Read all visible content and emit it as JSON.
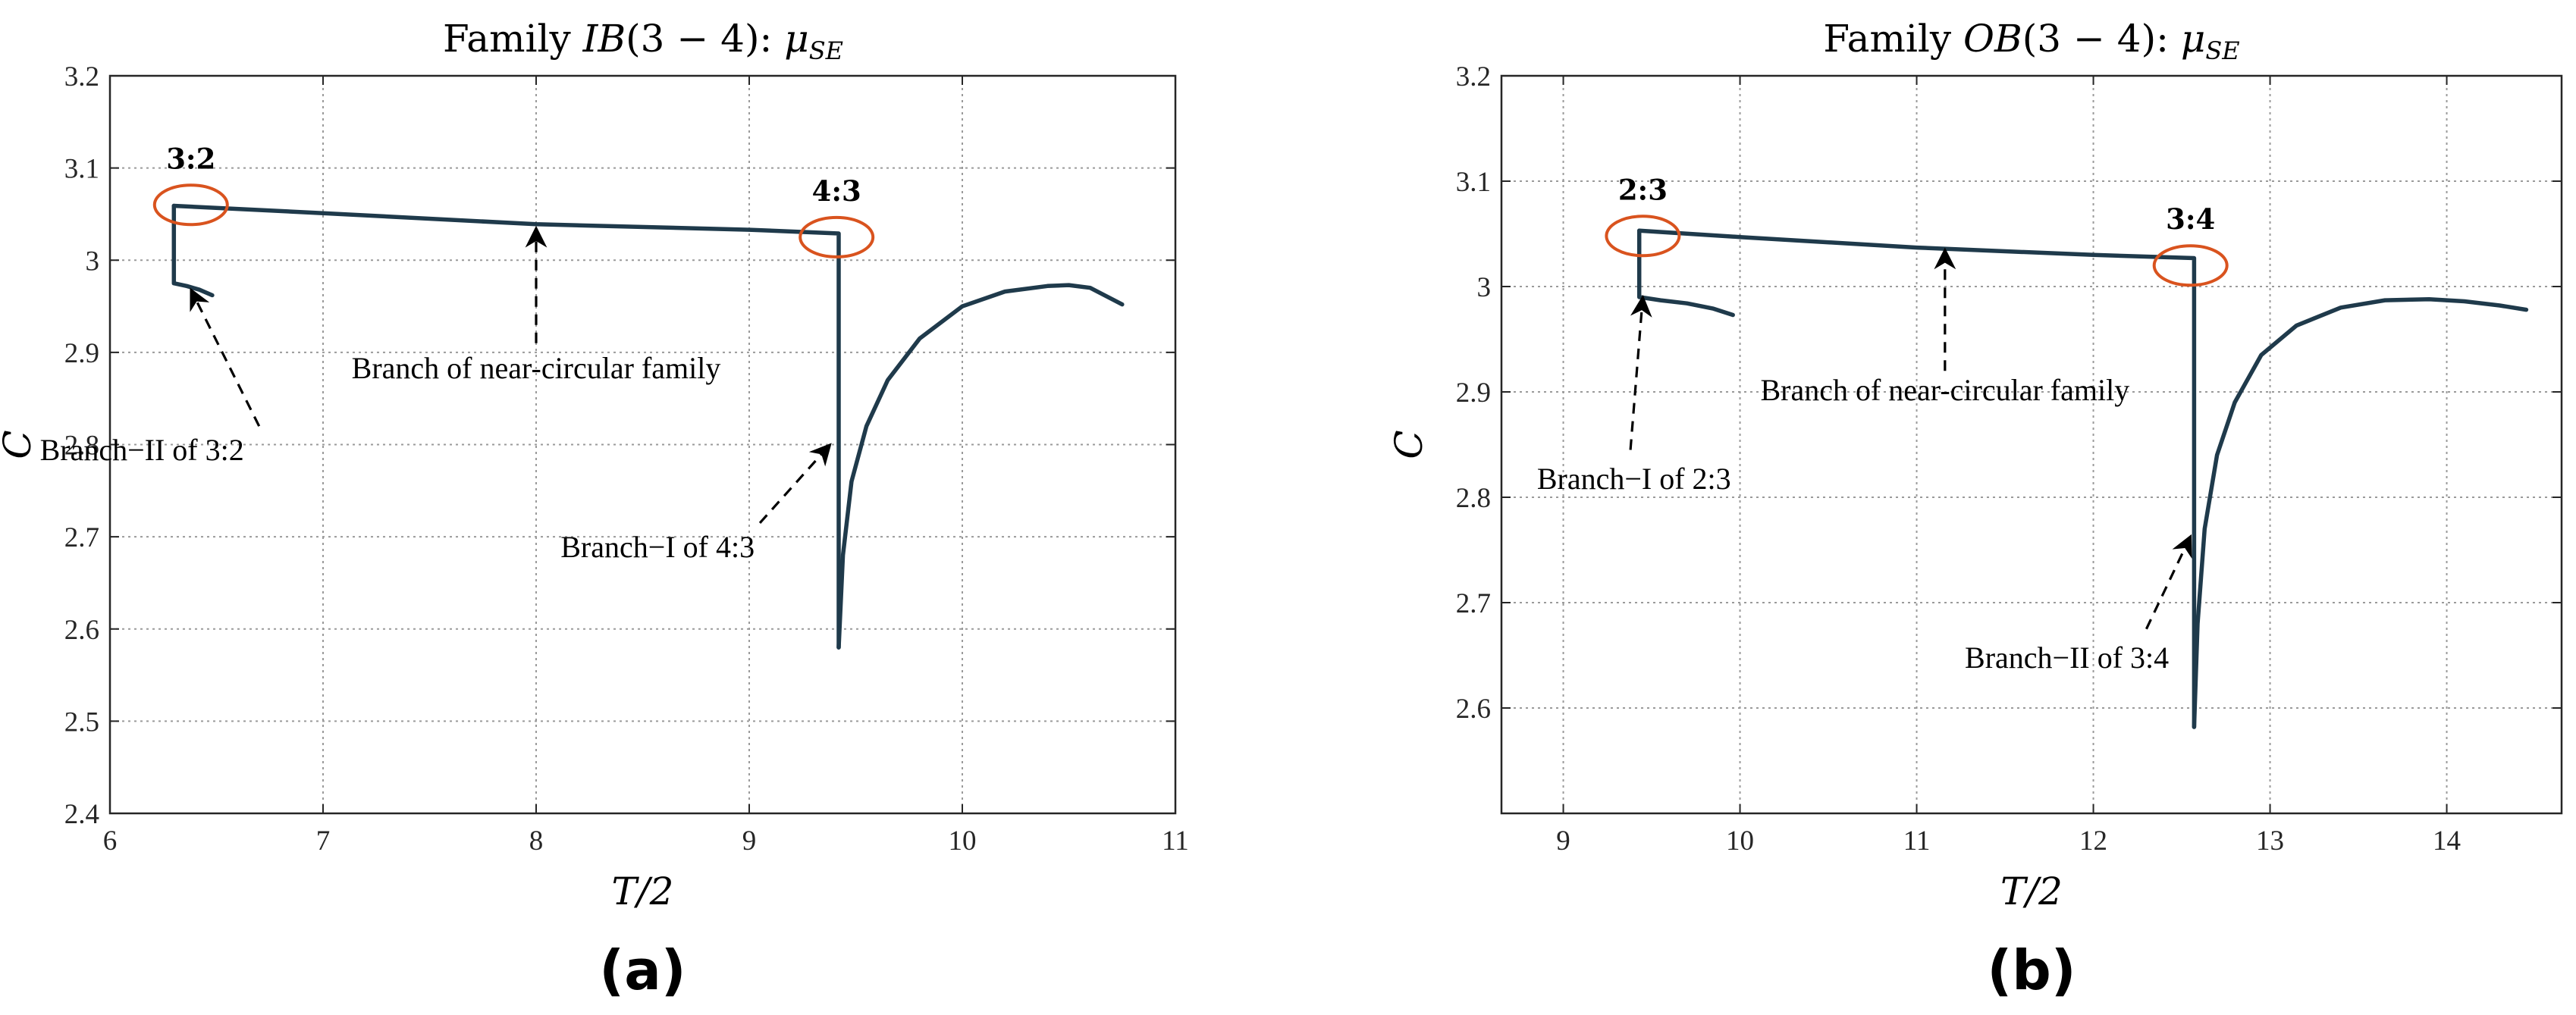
{
  "chart_data": [
    {
      "type": "line",
      "panel_label": "(a)",
      "title_prefix": "Family",
      "title_italic": "IB",
      "title_suffix": "(3 − 4):",
      "title_mu": "μ",
      "title_sub": "SE",
      "xlabel": "T/2",
      "ylabel": "C",
      "xlim": [
        6,
        11
      ],
      "ylim": [
        2.4,
        3.2
      ],
      "xticks": [
        6,
        7,
        8,
        9,
        10,
        11
      ],
      "xtick_labels": [
        "6",
        "7",
        "8",
        "9",
        "10",
        "11"
      ],
      "yticks": [
        2.4,
        2.5,
        2.6,
        2.7,
        2.8,
        2.9,
        3.0,
        3.1,
        3.2
      ],
      "ytick_labels": [
        "2.4",
        "2.5",
        "2.6",
        "2.7",
        "2.8",
        "2.9",
        "3",
        "3.1",
        "3.2"
      ],
      "grid": true,
      "series": [
        {
          "x": [
            6.3,
            6.3,
            6.36,
            6.42,
            6.48
          ],
          "y": [
            3.059,
            2.975,
            2.972,
            2.968,
            2.962
          ]
        },
        {
          "x": [
            6.3,
            7.0,
            8.0,
            9.0,
            9.42,
            9.42
          ],
          "y": [
            3.059,
            3.051,
            3.039,
            3.033,
            3.029,
            2.58
          ]
        },
        {
          "x": [
            9.42,
            9.44,
            9.48,
            9.55,
            9.65,
            9.8,
            10.0,
            10.2,
            10.4,
            10.5,
            10.6,
            10.75
          ],
          "y": [
            2.58,
            2.68,
            2.76,
            2.82,
            2.87,
            2.915,
            2.95,
            2.966,
            2.972,
            2.973,
            2.97,
            2.952
          ]
        }
      ],
      "resonances": [
        {
          "label": "3:2",
          "x": 6.38,
          "y": 3.06
        },
        {
          "label": "4:3",
          "x": 9.41,
          "y": 3.025
        }
      ],
      "annotations": [
        {
          "text": "Branch of near-circular family",
          "text_x": 8.0,
          "text_y": 2.872,
          "arrow_from": [
            8.0,
            2.91
          ],
          "arrow_to": [
            8.0,
            3.035
          ]
        },
        {
          "text": "Branch−II of 3:2",
          "text_x": 6.15,
          "text_y": 2.783,
          "arrow_from": [
            6.7,
            2.82
          ],
          "arrow_to": [
            6.38,
            2.968
          ]
        },
        {
          "text": "Branch−I of 4:3",
          "text_x": 8.57,
          "text_y": 2.678,
          "arrow_from": [
            9.05,
            2.715
          ],
          "arrow_to": [
            9.38,
            2.8
          ]
        }
      ]
    },
    {
      "type": "line",
      "panel_label": "(b)",
      "title_prefix": "Family",
      "title_italic": "OB",
      "title_suffix": "(3 − 4):",
      "title_mu": "μ",
      "title_sub": "SE",
      "xlabel": "T/2",
      "ylabel": "C",
      "xlim": [
        8.65,
        14.65
      ],
      "ylim": [
        2.5,
        3.2
      ],
      "xticks": [
        9,
        10,
        11,
        12,
        13,
        14
      ],
      "xtick_labels": [
        "9",
        "10",
        "11",
        "12",
        "13",
        "14"
      ],
      "yticks": [
        2.6,
        2.7,
        2.8,
        2.9,
        3.0,
        3.1,
        3.2
      ],
      "ytick_labels": [
        "2.6",
        "2.7",
        "2.8",
        "2.9",
        "3",
        "3.1",
        "3.2"
      ],
      "grid": true,
      "series": [
        {
          "x": [
            9.43,
            9.43,
            9.55,
            9.7,
            9.85,
            9.96
          ],
          "y": [
            3.053,
            2.99,
            2.987,
            2.984,
            2.979,
            2.973
          ]
        },
        {
          "x": [
            9.43,
            10.0,
            11.0,
            12.0,
            12.57,
            12.57
          ],
          "y": [
            3.053,
            3.047,
            3.037,
            3.03,
            3.027,
            2.582
          ]
        },
        {
          "x": [
            12.57,
            12.59,
            12.63,
            12.7,
            12.8,
            12.95,
            13.15,
            13.4,
            13.65,
            13.9,
            14.1,
            14.3,
            14.45
          ],
          "y": [
            2.582,
            2.68,
            2.77,
            2.84,
            2.89,
            2.935,
            2.963,
            2.98,
            2.987,
            2.988,
            2.986,
            2.982,
            2.978
          ]
        }
      ],
      "resonances": [
        {
          "label": "2:3",
          "x": 9.45,
          "y": 3.048
        },
        {
          "label": "3:4",
          "x": 12.55,
          "y": 3.02
        }
      ],
      "annotations": [
        {
          "text": "Branch of near-circular family",
          "text_x": 11.16,
          "text_y": 2.892,
          "arrow_from": [
            11.16,
            2.92
          ],
          "arrow_to": [
            11.16,
            3.035
          ]
        },
        {
          "text": "Branch−I of 2:3",
          "text_x": 9.4,
          "text_y": 2.808,
          "arrow_from": [
            9.38,
            2.845
          ],
          "arrow_to": [
            9.45,
            2.99
          ]
        },
        {
          "text": "Branch−II of 3:4",
          "text_x": 11.85,
          "text_y": 2.638,
          "arrow_from": [
            12.3,
            2.675
          ],
          "arrow_to": [
            12.55,
            2.763
          ]
        }
      ]
    }
  ]
}
